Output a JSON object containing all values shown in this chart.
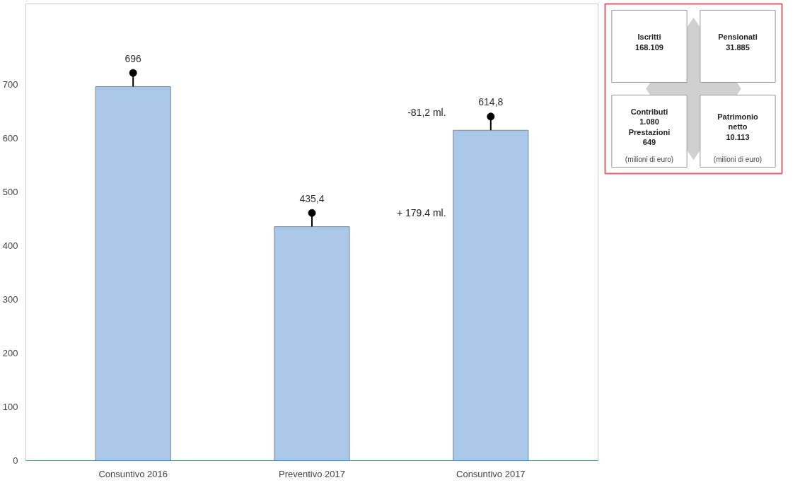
{
  "chart_data": [
    {
      "type": "bar",
      "categories": [
        "Consuntivo 2016",
        "Preventivo 2017",
        "Consuntivo 2017"
      ],
      "values": [
        696,
        435.4,
        614.8
      ],
      "color": "#a9c8e8",
      "value_labels": [
        "696",
        "435,4",
        "614,8"
      ],
      "ylim": [
        0,
        850
      ],
      "yticks": [
        0,
        100,
        200,
        300,
        400,
        500,
        600,
        700
      ],
      "grid": false,
      "annotations": [
        "-81,2 ml.",
        "+ 179.4 ml."
      ]
    },
    {
      "type": "other",
      "annotations": [
        "Iscritti\n168.109",
        "Pensionati\n31.885",
        "Contributi\n1.080\nPrestazioni\n649",
        "(milioni di euro)",
        "Patrimonio\nnetto\n10.113",
        "(milioni di euro)"
      ]
    }
  ]
}
